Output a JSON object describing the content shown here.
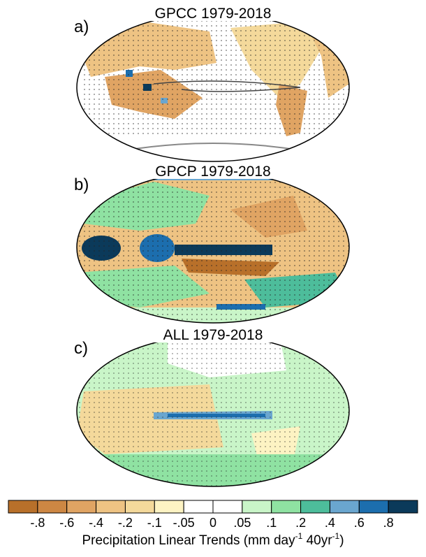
{
  "panels": [
    {
      "label": "a)",
      "title": "GPCC 1979-2018"
    },
    {
      "label": "b)",
      "title": "GPCP 1979-2018"
    },
    {
      "label": "c)",
      "title": "ALL 1979-2018"
    }
  ],
  "colorbar": {
    "colors": [
      "#b8702a",
      "#cd8743",
      "#e0a463",
      "#eec383",
      "#f4d99b",
      "#fdf3c3",
      "#ffffff",
      "#ffffff",
      "#c9f5c8",
      "#8fe2a2",
      "#4dbd9b",
      "#6aa6cf",
      "#1c6eae",
      "#0b3a5a"
    ],
    "tick_labels": [
      "-.8",
      "-.6",
      "-.4",
      "-.2",
      "-.1",
      "-.05",
      "0",
      ".05",
      ".1",
      ".2",
      ".4",
      ".6",
      ".8"
    ],
    "label_parts": [
      "Precipitation Linear Trends (mm day",
      "-1",
      " 40yr",
      "-1",
      ")"
    ]
  }
}
